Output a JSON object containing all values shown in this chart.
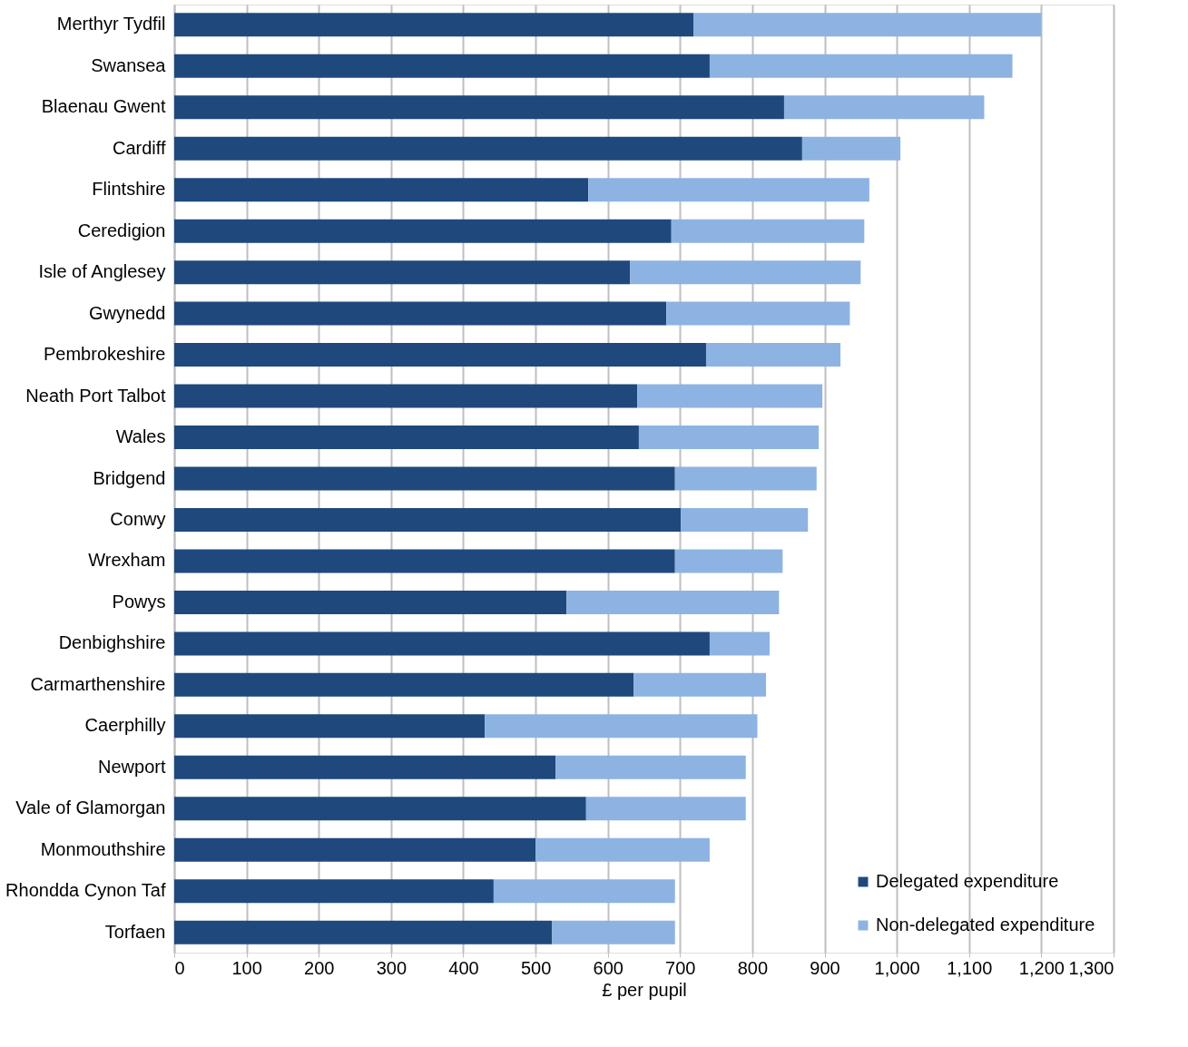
{
  "chart_data": {
    "type": "bar",
    "orientation": "horizontal",
    "stacked": true,
    "categories": [
      "Merthyr Tydfil",
      "Swansea",
      "Blaenau Gwent",
      "Cardiff",
      "Flintshire",
      "Ceredigion",
      "Isle of Anglesey",
      "Gwynedd",
      "Pembrokeshire",
      "Neath Port Talbot",
      "Wales",
      "Bridgend",
      "Conwy",
      "Wrexham",
      "Powys",
      "Denbighshire",
      "Carmarthenshire",
      "Caerphilly",
      "Newport",
      "Vale of Glamorgan",
      "Monmouthshire",
      "Rhondda Cynon Taf",
      "Torfaen"
    ],
    "series": [
      {
        "name": "Delegated expenditure",
        "color": "#1f497d",
        "values": [
          719,
          741,
          844,
          869,
          573,
          688,
          631,
          681,
          736,
          641,
          643,
          693,
          701,
          693,
          543,
          741,
          636,
          430,
          528,
          570,
          500,
          442,
          523
        ]
      },
      {
        "name": "Non-delegated expenditure",
        "color": "#8db3e2",
        "values": [
          481,
          419,
          277,
          136,
          389,
          267,
          319,
          254,
          186,
          256,
          249,
          196,
          176,
          149,
          294,
          83,
          183,
          377,
          263,
          221,
          241,
          251,
          170
        ]
      }
    ],
    "xlabel": "£ per pupil",
    "xlim": [
      0,
      1300
    ],
    "xticks": [
      0,
      100,
      200,
      300,
      400,
      500,
      600,
      700,
      800,
      900,
      {
        "value": 1000,
        "label": "1,000"
      },
      {
        "value": 1100,
        "label": "1,100"
      },
      {
        "value": 1200,
        "label": "1,200"
      },
      {
        "value": 1300,
        "label": "1,300"
      }
    ],
    "grid": "x",
    "legend": "bottom right"
  }
}
